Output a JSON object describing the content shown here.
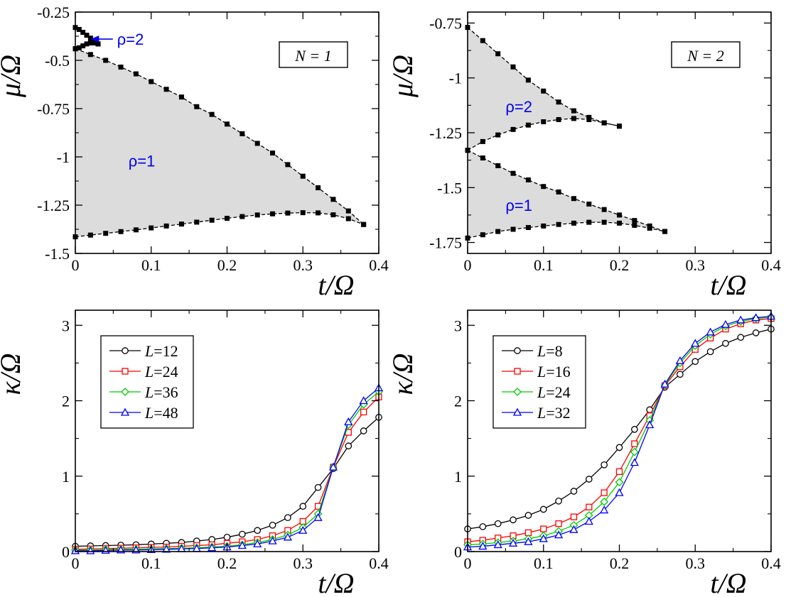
{
  "chart_data": [
    {
      "type": "line",
      "panel": "top-left",
      "box_label": "N = 1",
      "xlabel": "t/Ω",
      "ylabel": "μ/Ω",
      "xlim": [
        0,
        0.4
      ],
      "ylim": [
        -1.5,
        -0.25
      ],
      "xticks": [
        0,
        0.1,
        0.2,
        0.3,
        0.4
      ],
      "xtick_labels": [
        "0",
        "0.1",
        "0.2",
        "0.3",
        "0.4"
      ],
      "yticks": [
        -0.25,
        -0.5,
        -0.75,
        -1,
        -1.25,
        -1.5
      ],
      "ytick_labels": [
        "-0.25",
        "-0.5",
        "-0.75",
        "-1",
        "-1.25",
        "-1.5"
      ],
      "fills": [
        {
          "upper": "upper1",
          "lower": "lower1",
          "color": "#dcdcdc"
        }
      ],
      "series": [
        {
          "name": "upper1",
          "style": "marker-dash",
          "x": [
            0,
            0.02,
            0.04,
            0.06,
            0.08,
            0.1,
            0.12,
            0.14,
            0.16,
            0.18,
            0.2,
            0.22,
            0.24,
            0.26,
            0.28,
            0.3,
            0.32,
            0.34,
            0.36,
            0.38
          ],
          "y": [
            -0.44,
            -0.47,
            -0.5,
            -0.535,
            -0.57,
            -0.61,
            -0.65,
            -0.69,
            -0.74,
            -0.78,
            -0.83,
            -0.88,
            -0.93,
            -0.98,
            -1.04,
            -1.1,
            -1.16,
            -1.22,
            -1.28,
            -1.35
          ]
        },
        {
          "name": "lower1",
          "style": "marker-dash",
          "x": [
            0,
            0.02,
            0.04,
            0.06,
            0.08,
            0.1,
            0.12,
            0.14,
            0.16,
            0.18,
            0.2,
            0.22,
            0.24,
            0.26,
            0.28,
            0.3,
            0.32,
            0.34,
            0.36,
            0.38
          ],
          "y": [
            -1.414,
            -1.405,
            -1.396,
            -1.387,
            -1.378,
            -1.368,
            -1.358,
            -1.348,
            -1.338,
            -1.328,
            -1.318,
            -1.309,
            -1.301,
            -1.295,
            -1.291,
            -1.289,
            -1.29,
            -1.3,
            -1.32,
            -1.35
          ]
        },
        {
          "name": "upper2",
          "style": "marker-dash",
          "x": [
            0,
            0.005,
            0.01,
            0.015,
            0.02,
            0.025,
            0.03
          ],
          "y": [
            -0.33,
            -0.34,
            -0.355,
            -0.37,
            -0.385,
            -0.4,
            -0.415
          ]
        },
        {
          "name": "lower2",
          "style": "marker-dash",
          "x": [
            0,
            0.005,
            0.01,
            0.015,
            0.02,
            0.025,
            0.03
          ],
          "y": [
            -0.44,
            -0.435,
            -0.425,
            -0.415,
            -0.41,
            -0.41,
            -0.415
          ]
        }
      ],
      "annotations": [
        {
          "text": "ρ=1",
          "x": 0.07,
          "y": -1.02,
          "color": "#0000ee"
        },
        {
          "text": "ρ=2",
          "x": 0.055,
          "y": -0.39,
          "color": "#0000ee",
          "arrow_to": [
            0.02,
            -0.39
          ]
        }
      ]
    },
    {
      "type": "line",
      "panel": "top-right",
      "box_label": "N = 2",
      "xlabel": "t/Ω",
      "ylabel": "μ/Ω",
      "xlim": [
        0,
        0.4
      ],
      "ylim": [
        -1.8,
        -0.7
      ],
      "xticks": [
        0,
        0.1,
        0.2,
        0.3,
        0.4
      ],
      "xtick_labels": [
        "0",
        "0.1",
        "0.2",
        "0.3",
        "0.4"
      ],
      "yticks": [
        -0.75,
        -1,
        -1.25,
        -1.5,
        -1.75
      ],
      "ytick_labels": [
        "-0.75",
        "-1",
        "-1.25",
        "-1.5",
        "-1.75"
      ],
      "fills": [
        {
          "upper": "upperA",
          "lower": "lowerA",
          "color": "#dcdcdc"
        },
        {
          "upper": "upperB",
          "lower": "lowerB",
          "color": "#dcdcdc"
        }
      ],
      "series": [
        {
          "name": "upperA",
          "style": "marker-dash",
          "x": [
            0,
            0.02,
            0.04,
            0.06,
            0.08,
            0.1,
            0.12,
            0.14,
            0.16,
            0.18,
            0.2
          ],
          "y": [
            -0.77,
            -0.83,
            -0.89,
            -0.95,
            -1.01,
            -1.06,
            -1.11,
            -1.15,
            -1.18,
            -1.205,
            -1.22
          ]
        },
        {
          "name": "lowerA",
          "style": "marker-dash",
          "x": [
            0,
            0.02,
            0.04,
            0.06,
            0.08,
            0.1,
            0.12,
            0.14,
            0.16,
            0.18,
            0.2
          ],
          "y": [
            -1.33,
            -1.29,
            -1.26,
            -1.235,
            -1.215,
            -1.2,
            -1.19,
            -1.185,
            -1.19,
            -1.205,
            -1.22
          ]
        },
        {
          "name": "upperB",
          "style": "marker-dash",
          "x": [
            0,
            0.02,
            0.04,
            0.06,
            0.08,
            0.1,
            0.12,
            0.14,
            0.16,
            0.18,
            0.2,
            0.22,
            0.24,
            0.26
          ],
          "y": [
            -1.33,
            -1.365,
            -1.4,
            -1.435,
            -1.465,
            -1.495,
            -1.52,
            -1.55,
            -1.575,
            -1.6,
            -1.625,
            -1.65,
            -1.675,
            -1.7
          ]
        },
        {
          "name": "lowerB",
          "style": "marker-dash",
          "x": [
            0,
            0.02,
            0.04,
            0.06,
            0.08,
            0.1,
            0.12,
            0.14,
            0.16,
            0.18,
            0.2,
            0.22,
            0.24,
            0.26
          ],
          "y": [
            -1.73,
            -1.715,
            -1.7,
            -1.69,
            -1.682,
            -1.675,
            -1.668,
            -1.662,
            -1.658,
            -1.658,
            -1.662,
            -1.672,
            -1.685,
            -1.7
          ]
        }
      ],
      "annotations": [
        {
          "text": "ρ=2",
          "x": 0.05,
          "y": -1.13,
          "color": "#0000ee"
        },
        {
          "text": "ρ=1",
          "x": 0.05,
          "y": -1.58,
          "color": "#0000ee"
        }
      ]
    },
    {
      "type": "line",
      "panel": "bottom-left",
      "xlabel": "t/Ω",
      "ylabel": "κ/Ω",
      "xlim": [
        0,
        0.4
      ],
      "ylim": [
        0,
        3.2
      ],
      "xticks": [
        0,
        0.1,
        0.2,
        0.3,
        0.4
      ],
      "xtick_labels": [
        "0",
        "0.1",
        "0.2",
        "0.3",
        "0.4"
      ],
      "yticks": [
        0,
        1,
        2,
        3
      ],
      "ytick_labels": [
        "0",
        "1",
        "2",
        "3"
      ],
      "legend": "top-left",
      "x": [
        0,
        0.02,
        0.04,
        0.06,
        0.08,
        0.1,
        0.12,
        0.14,
        0.16,
        0.18,
        0.2,
        0.22,
        0.24,
        0.26,
        0.28,
        0.3,
        0.32,
        0.34,
        0.36,
        0.38,
        0.4
      ],
      "series": [
        {
          "name": "L=12",
          "color": "#000000",
          "marker": "circle",
          "values": [
            0.07,
            0.075,
            0.08,
            0.085,
            0.09,
            0.1,
            0.11,
            0.12,
            0.14,
            0.16,
            0.19,
            0.23,
            0.28,
            0.35,
            0.45,
            0.6,
            0.85,
            1.1,
            1.4,
            1.6,
            1.78
          ]
        },
        {
          "name": "L=24",
          "color": "#ff0000",
          "marker": "square",
          "values": [
            0.03,
            0.035,
            0.04,
            0.045,
            0.05,
            0.055,
            0.06,
            0.07,
            0.08,
            0.09,
            0.11,
            0.13,
            0.16,
            0.21,
            0.28,
            0.4,
            0.6,
            1.12,
            1.58,
            1.85,
            2.05
          ]
        },
        {
          "name": "L=36",
          "color": "#00cc00",
          "marker": "diamond",
          "values": [
            0.02,
            0.02,
            0.025,
            0.03,
            0.03,
            0.035,
            0.04,
            0.045,
            0.05,
            0.06,
            0.07,
            0.09,
            0.12,
            0.16,
            0.22,
            0.32,
            0.5,
            1.12,
            1.68,
            1.95,
            2.12
          ]
        },
        {
          "name": "L=48",
          "color": "#0000ff",
          "marker": "triangle",
          "values": [
            0.01,
            0.01,
            0.015,
            0.02,
            0.02,
            0.025,
            0.03,
            0.035,
            0.04,
            0.05,
            0.06,
            0.08,
            0.1,
            0.14,
            0.19,
            0.28,
            0.45,
            1.12,
            1.72,
            2.0,
            2.17
          ]
        }
      ],
      "series_labels": [
        {
          "name": "L",
          "value": "12"
        },
        {
          "name": "L",
          "value": "24"
        },
        {
          "name": "L",
          "value": "36"
        },
        {
          "name": "L",
          "value": "48"
        }
      ]
    },
    {
      "type": "line",
      "panel": "bottom-right",
      "xlabel": "t/Ω",
      "ylabel": "κ/Ω",
      "xlim": [
        0,
        0.4
      ],
      "ylim": [
        0,
        3.2
      ],
      "xticks": [
        0,
        0.1,
        0.2,
        0.3,
        0.4
      ],
      "xtick_labels": [
        "0",
        "0.1",
        "0.2",
        "0.3",
        "0.4"
      ],
      "yticks": [
        0,
        1,
        2,
        3
      ],
      "ytick_labels": [
        "0",
        "1",
        "2",
        "3"
      ],
      "legend": "top-left",
      "x": [
        0,
        0.02,
        0.04,
        0.06,
        0.08,
        0.1,
        0.12,
        0.14,
        0.16,
        0.18,
        0.2,
        0.22,
        0.24,
        0.26,
        0.28,
        0.3,
        0.32,
        0.34,
        0.36,
        0.38,
        0.4
      ],
      "series": [
        {
          "name": "L=8",
          "color": "#000000",
          "marker": "circle",
          "values": [
            0.3,
            0.33,
            0.37,
            0.42,
            0.48,
            0.56,
            0.67,
            0.8,
            0.96,
            1.15,
            1.38,
            1.62,
            1.88,
            2.18,
            2.35,
            2.52,
            2.65,
            2.76,
            2.84,
            2.9,
            2.95
          ]
        },
        {
          "name": "L=16",
          "color": "#ff0000",
          "marker": "square",
          "values": [
            0.13,
            0.15,
            0.18,
            0.21,
            0.25,
            0.3,
            0.37,
            0.46,
            0.59,
            0.78,
            1.06,
            1.43,
            1.8,
            2.2,
            2.45,
            2.68,
            2.83,
            2.95,
            3.02,
            3.07,
            3.09
          ]
        },
        {
          "name": "L=24",
          "color": "#00cc00",
          "marker": "diamond",
          "values": [
            0.09,
            0.1,
            0.12,
            0.14,
            0.17,
            0.21,
            0.27,
            0.35,
            0.48,
            0.66,
            0.92,
            1.32,
            1.74,
            2.21,
            2.5,
            2.73,
            2.88,
            2.99,
            3.05,
            3.09,
            3.11
          ]
        },
        {
          "name": "L=32",
          "color": "#0000ff",
          "marker": "triangle",
          "values": [
            0.06,
            0.07,
            0.09,
            0.11,
            0.13,
            0.17,
            0.22,
            0.29,
            0.4,
            0.55,
            0.78,
            1.18,
            1.68,
            2.22,
            2.53,
            2.76,
            2.91,
            3.01,
            3.07,
            3.1,
            3.12
          ]
        }
      ],
      "series_labels": [
        {
          "name": "L",
          "value": "8"
        },
        {
          "name": "L",
          "value": "16"
        },
        {
          "name": "L",
          "value": "24"
        },
        {
          "name": "L",
          "value": "32"
        }
      ]
    }
  ]
}
